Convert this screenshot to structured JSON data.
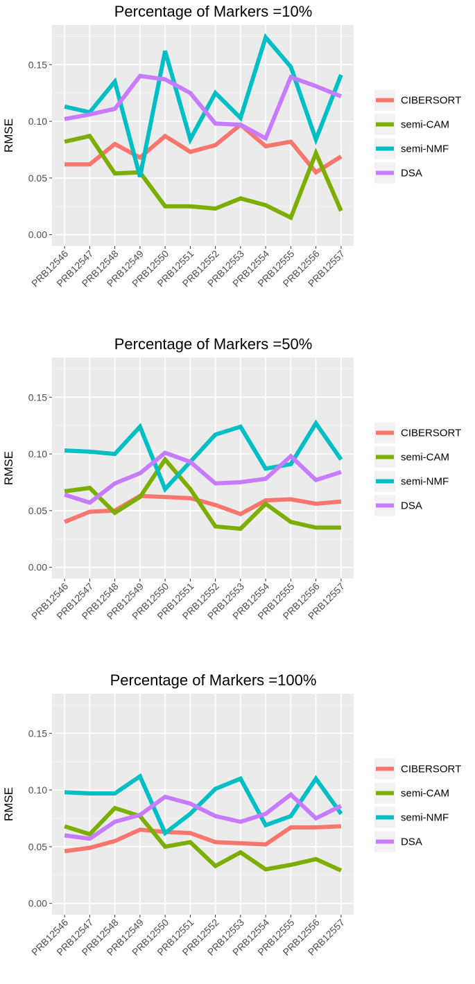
{
  "chart_data": [
    {
      "type": "line",
      "title": "Percentage of Markers =10%",
      "xlabel": "",
      "ylabel": "RMSE",
      "ylim": [
        -0.01,
        0.185
      ],
      "yticks": [
        "0.00",
        "0.05",
        "0.10",
        "0.15"
      ],
      "categories": [
        "PRB12546",
        "PRB12547",
        "PRB12548",
        "PRB12549",
        "PRB12550",
        "PRB12551",
        "PRB12552",
        "PRB12553",
        "PRB12554",
        "PRB12555",
        "PRB12556",
        "PRB12557"
      ],
      "grid": true,
      "legend_position": "right",
      "series": [
        {
          "name": "CIBERSORT",
          "color": "#F8766D",
          "values": [
            0.062,
            0.062,
            0.08,
            0.068,
            0.087,
            0.073,
            0.079,
            0.097,
            0.078,
            0.082,
            0.055,
            0.069
          ]
        },
        {
          "name": "semi-CAM",
          "color": "#7CAE00",
          "values": [
            0.082,
            0.087,
            0.054,
            0.055,
            0.025,
            0.025,
            0.023,
            0.032,
            0.026,
            0.015,
            0.072,
            0.021
          ]
        },
        {
          "name": "semi-NMF",
          "color": "#00BFC4",
          "values": [
            0.113,
            0.108,
            0.135,
            0.051,
            0.162,
            0.084,
            0.125,
            0.103,
            0.174,
            0.148,
            0.084,
            0.141
          ]
        },
        {
          "name": "DSA",
          "color": "#C77CFF",
          "values": [
            0.102,
            0.106,
            0.111,
            0.14,
            0.137,
            0.125,
            0.098,
            0.097,
            0.085,
            0.139,
            0.131,
            0.122
          ]
        }
      ]
    },
    {
      "type": "line",
      "title": "Percentage of Markers =50%",
      "xlabel": "",
      "ylabel": "RMSE",
      "ylim": [
        -0.01,
        0.185
      ],
      "yticks": [
        "0.00",
        "0.05",
        "0.10",
        "0.15"
      ],
      "categories": [
        "PRB12546",
        "PRB12547",
        "PRB12548",
        "PRB12549",
        "PRB12550",
        "PRB12551",
        "PRB12552",
        "PRB12553",
        "PRB12554",
        "PRB12555",
        "PRB12556",
        "PRB12557"
      ],
      "grid": true,
      "legend_position": "right",
      "series": [
        {
          "name": "CIBERSORT",
          "color": "#F8766D",
          "values": [
            0.04,
            0.049,
            0.05,
            0.063,
            0.062,
            0.061,
            0.055,
            0.047,
            0.059,
            0.06,
            0.056,
            0.058
          ]
        },
        {
          "name": "semi-CAM",
          "color": "#7CAE00",
          "values": [
            0.067,
            0.07,
            0.048,
            0.062,
            0.095,
            0.069,
            0.036,
            0.034,
            0.056,
            0.04,
            0.035,
            0.035
          ]
        },
        {
          "name": "semi-NMF",
          "color": "#00BFC4",
          "values": [
            0.103,
            0.102,
            0.1,
            0.124,
            0.069,
            0.093,
            0.117,
            0.124,
            0.087,
            0.091,
            0.127,
            0.095
          ]
        },
        {
          "name": "DSA",
          "color": "#C77CFF",
          "values": [
            0.064,
            0.057,
            0.074,
            0.083,
            0.101,
            0.093,
            0.074,
            0.075,
            0.078,
            0.098,
            0.077,
            0.084
          ]
        }
      ]
    },
    {
      "type": "line",
      "title": "Percentage of Markers =100%",
      "xlabel": "",
      "ylabel": "RMSE",
      "ylim": [
        -0.01,
        0.185
      ],
      "yticks": [
        "0.00",
        "0.05",
        "0.10",
        "0.15"
      ],
      "categories": [
        "PRB12546",
        "PRB12547",
        "PRB12548",
        "PRB12549",
        "PRB12550",
        "PRB12551",
        "PRB12552",
        "PRB12553",
        "PRB12554",
        "PRB12555",
        "PRB12556",
        "PRB12557"
      ],
      "grid": true,
      "legend_position": "right",
      "series": [
        {
          "name": "CIBERSORT",
          "color": "#F8766D",
          "values": [
            0.046,
            0.049,
            0.055,
            0.065,
            0.063,
            0.062,
            0.054,
            0.053,
            0.052,
            0.067,
            0.067,
            0.068
          ]
        },
        {
          "name": "semi-CAM",
          "color": "#7CAE00",
          "values": [
            0.068,
            0.061,
            0.084,
            0.077,
            0.05,
            0.054,
            0.033,
            0.045,
            0.03,
            0.034,
            0.039,
            0.029
          ]
        },
        {
          "name": "semi-NMF",
          "color": "#00BFC4",
          "values": [
            0.098,
            0.097,
            0.097,
            0.112,
            0.062,
            0.079,
            0.101,
            0.11,
            0.069,
            0.077,
            0.11,
            0.079
          ]
        },
        {
          "name": "DSA",
          "color": "#C77CFF",
          "values": [
            0.06,
            0.057,
            0.072,
            0.078,
            0.094,
            0.088,
            0.077,
            0.072,
            0.079,
            0.096,
            0.075,
            0.086
          ]
        }
      ]
    }
  ]
}
